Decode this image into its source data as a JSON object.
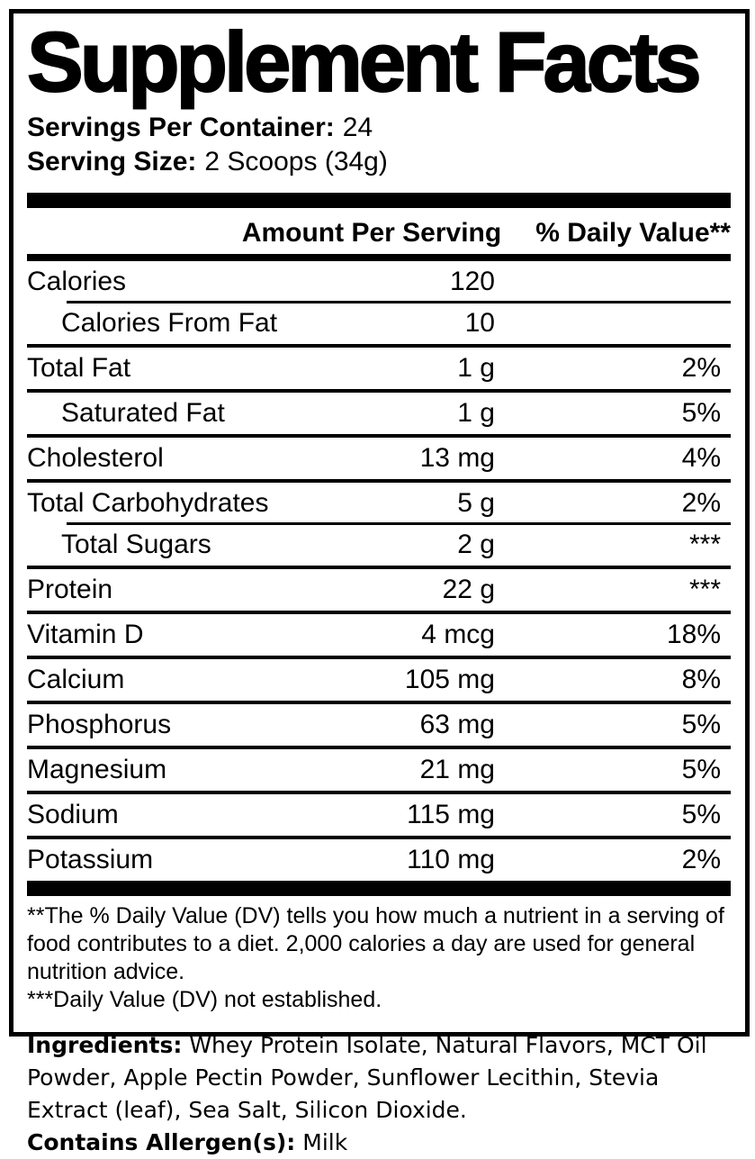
{
  "panel": {
    "title": "Supplement Facts",
    "servings": {
      "label": "Servings Per Container:",
      "value": "24"
    },
    "serving_size": {
      "label": "Serving Size:",
      "value": "2 Scoops (34g)"
    },
    "header": {
      "amount": "Amount Per Serving",
      "daily_value": "% Daily Value**"
    },
    "rows": [
      {
        "name": "Calories",
        "amount": "120",
        "dv": "",
        "indent": false,
        "indent_divider": false
      },
      {
        "name": "Calories From Fat",
        "amount": "10",
        "dv": "",
        "indent": true,
        "indent_divider": true
      },
      {
        "name": "Total Fat",
        "amount": "1 g",
        "dv": "2%",
        "indent": false,
        "indent_divider": false
      },
      {
        "name": "Saturated Fat",
        "amount": "1 g",
        "dv": "5%",
        "indent": true,
        "indent_divider": false
      },
      {
        "name": "Cholesterol",
        "amount": "13 mg",
        "dv": "4%",
        "indent": false,
        "indent_divider": false
      },
      {
        "name": "Total Carbohydrates",
        "amount": "5 g",
        "dv": "2%",
        "indent": false,
        "indent_divider": false
      },
      {
        "name": "Total Sugars",
        "amount": "2 g",
        "dv": "***",
        "indent": true,
        "indent_divider": true
      },
      {
        "name": "Protein",
        "amount": "22 g",
        "dv": "***",
        "indent": false,
        "indent_divider": false
      },
      {
        "name": "Vitamin D",
        "amount": "4 mcg",
        "dv": "18%",
        "indent": false,
        "indent_divider": false
      },
      {
        "name": "Calcium",
        "amount": "105 mg",
        "dv": "8%",
        "indent": false,
        "indent_divider": false
      },
      {
        "name": "Phosphorus",
        "amount": "63 mg",
        "dv": "5%",
        "indent": false,
        "indent_divider": false
      },
      {
        "name": "Magnesium",
        "amount": "21 mg",
        "dv": "5%",
        "indent": false,
        "indent_divider": false
      },
      {
        "name": "Sodium",
        "amount": "115 mg",
        "dv": "5%",
        "indent": false,
        "indent_divider": false
      },
      {
        "name": "Potassium",
        "amount": "110 mg",
        "dv": "2%",
        "indent": false,
        "indent_divider": false
      }
    ],
    "footnote_dv": "**The % Daily Value (DV) tells you how much a nutrient in a serving of food contributes to a diet. 2,000 calories a day are used for general nutrition advice.",
    "footnote_nd": "***Daily Value (DV) not established."
  },
  "ingredients": {
    "label": "Ingredients:",
    "text": "Whey Protein Isolate, Natural Flavors, MCT Oil Powder, Apple Pectin Powder, Sunflower Lecithin, Stevia Extract (leaf), Sea Salt, Silicon Dioxide.",
    "allergen_label": "Contains Allergen(s):",
    "allergen_value": "Milk"
  },
  "colors": {
    "ink": "#000000",
    "paper": "#ffffff"
  }
}
